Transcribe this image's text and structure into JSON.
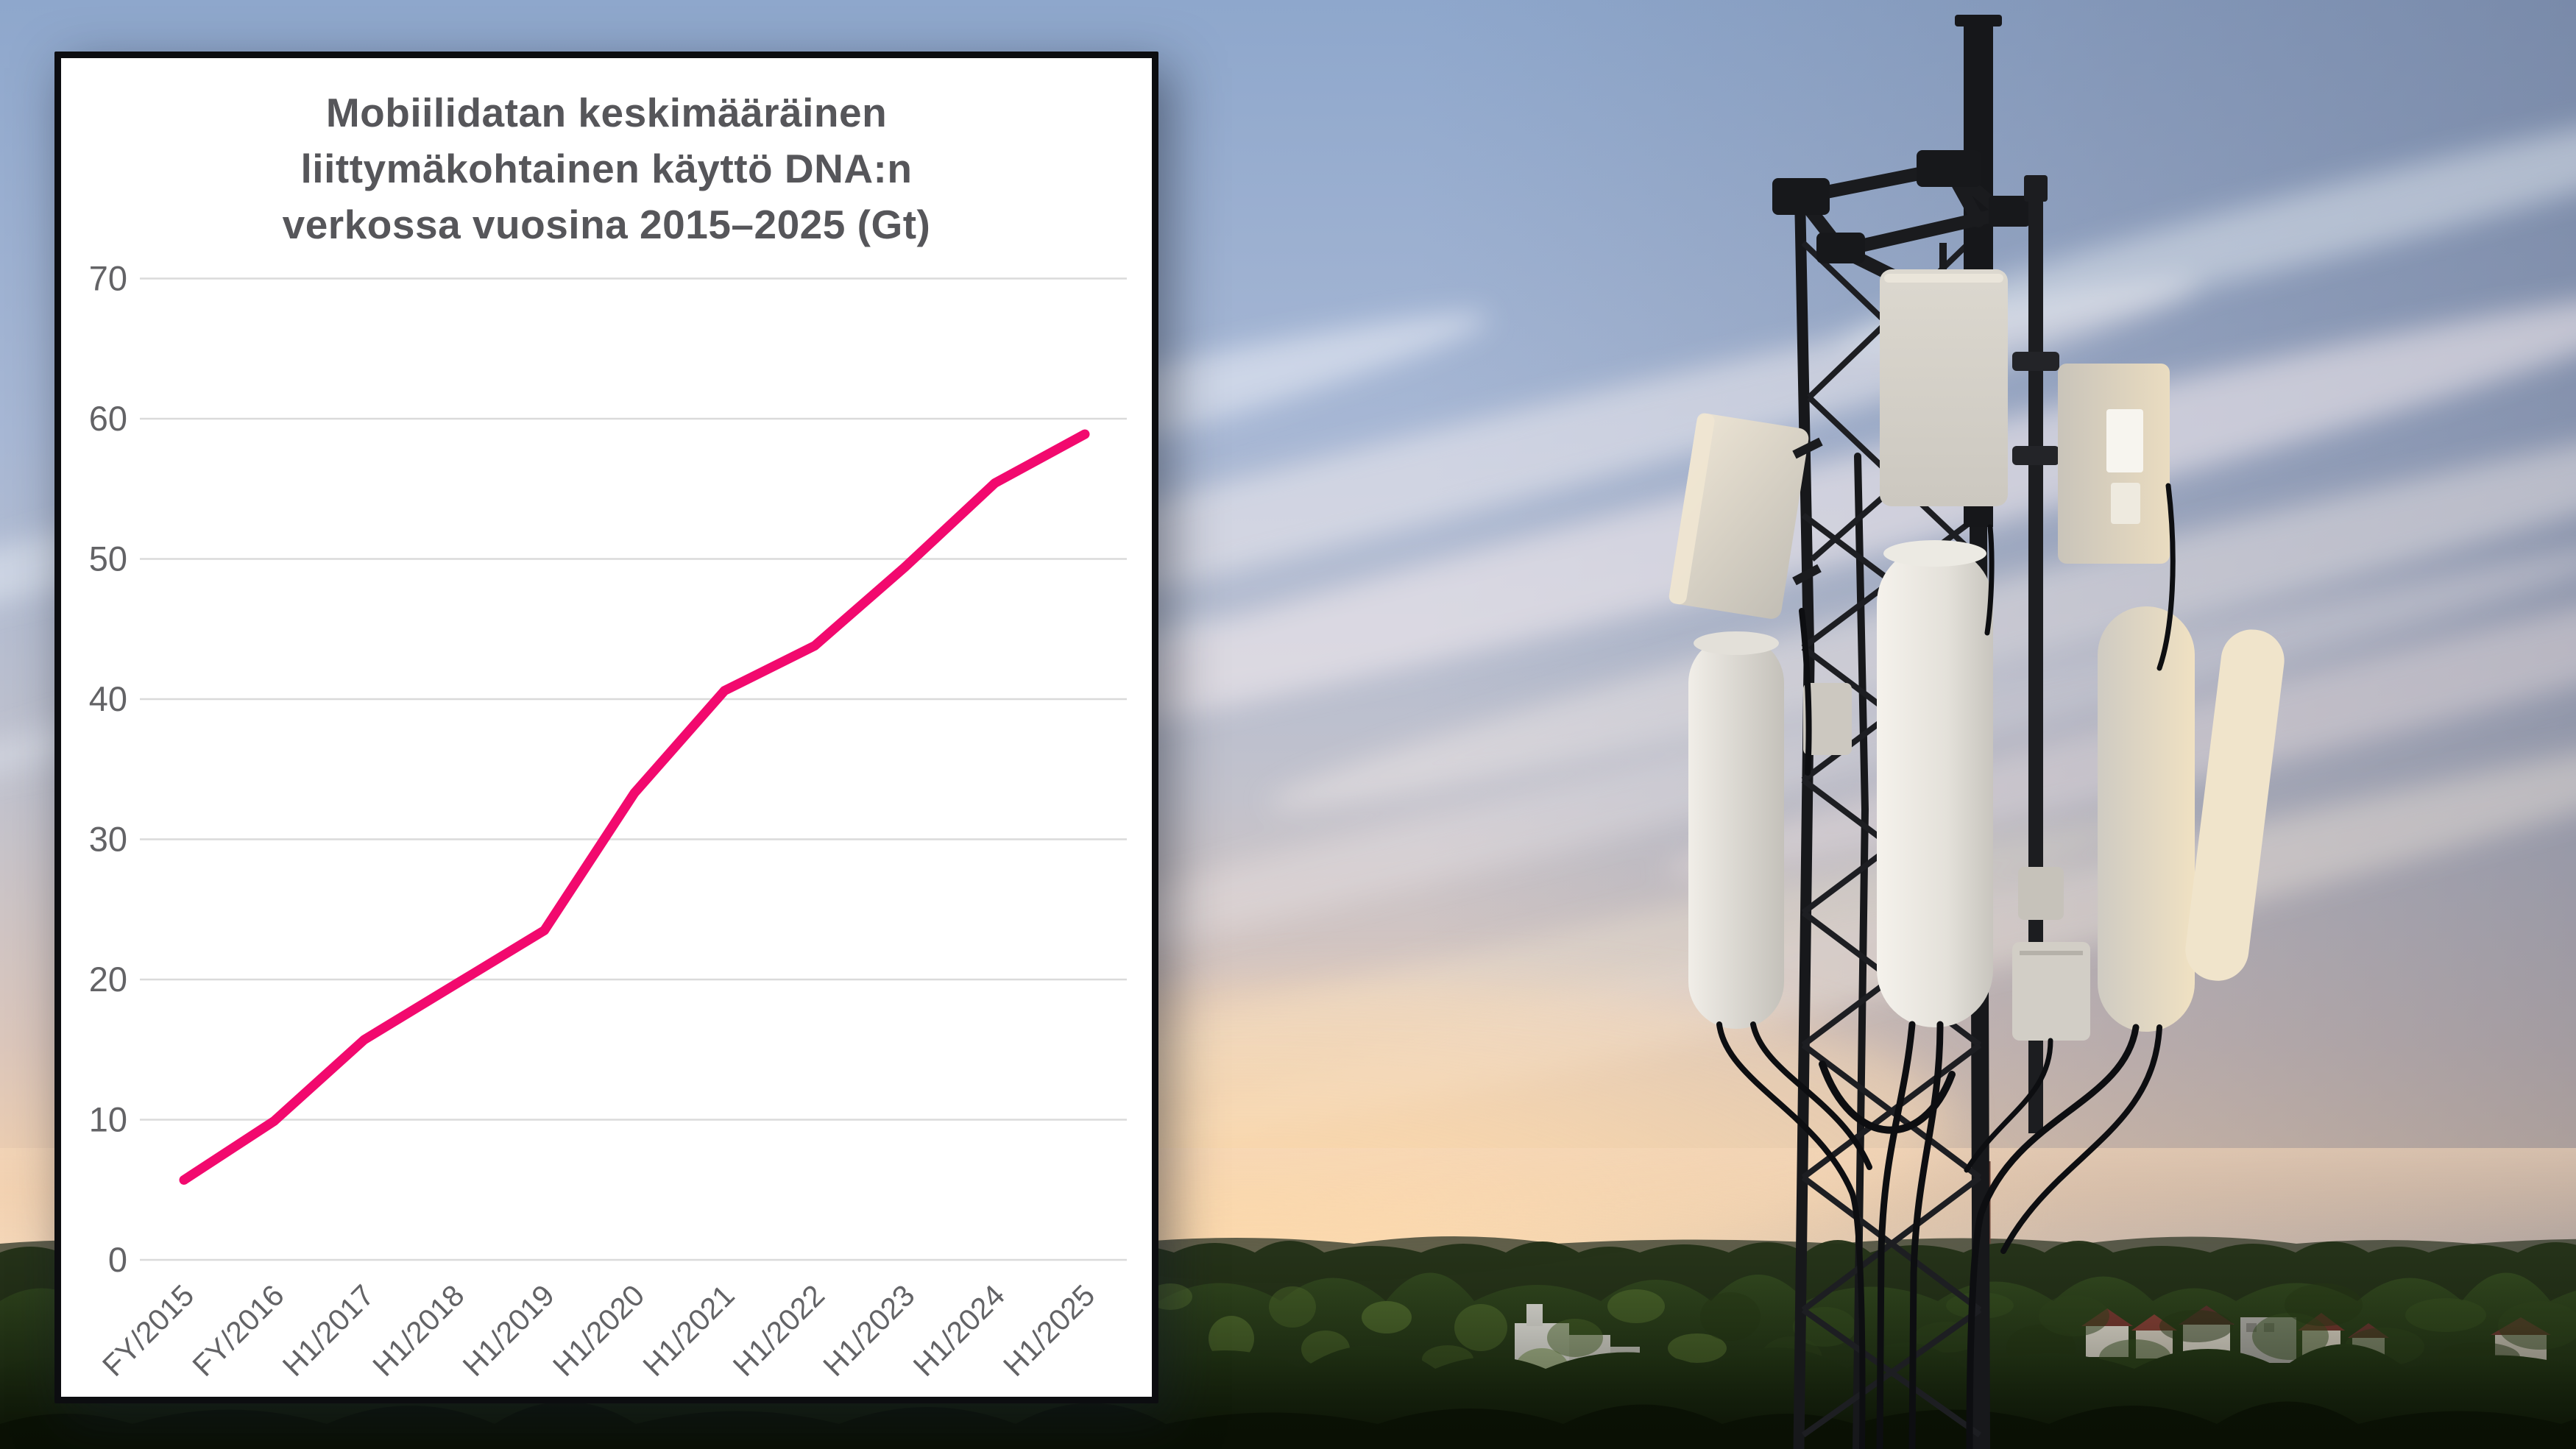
{
  "chart_data": {
    "type": "line",
    "title": "Mobiilidatan keskimääräinen liittymäkohtainen käyttö DNA:n verkossa vuosina 2015–2025 (Gt)",
    "title_lines": [
      "Mobiilidatan keskimääräinen",
      "liittymäkohtainen käyttö DNA:n",
      "verkossa vuosina 2015–2025 (Gt)"
    ],
    "categories": [
      "FY/2015",
      "FY/2016",
      "H1/2017",
      "H1/2018",
      "H1/2019",
      "H1/2020",
      "H1/2021",
      "H1/2022",
      "H1/2023",
      "H1/2024",
      "H1/2025"
    ],
    "values": [
      5.7,
      9.9,
      15.7,
      19.6,
      23.5,
      33.3,
      40.6,
      43.8,
      49.4,
      55.4,
      58.9
    ],
    "xlabel": "",
    "ylabel": "",
    "ylim": [
      0,
      70
    ],
    "yticks": [
      0,
      10,
      20,
      30,
      40,
      50,
      60,
      70
    ],
    "grid": "horizontal",
    "legend": "none",
    "line_color": "#f2096e"
  },
  "colors": {
    "card_background": "#ffffff",
    "card_border": "#0c0d10",
    "title_text": "#56565a",
    "axis_text": "#636366",
    "gridline": "#dadada",
    "line": "#f2096e"
  }
}
